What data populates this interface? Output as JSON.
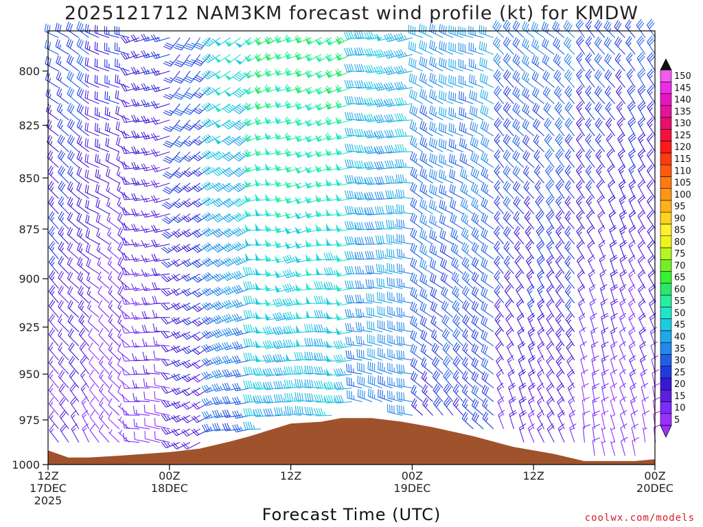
{
  "chart_data": {
    "type": "wind_profile",
    "title": "2025121712 NAM3KM forecast wind profile (kt) for KMDW",
    "xlabel": "Forecast Time (UTC)",
    "credit": "coolwx.com/models",
    "x_range_hours": [
      0,
      60
    ],
    "y_range_hpa": [
      1000,
      782
    ],
    "y_ticks": [
      {
        "label": "800",
        "value": 800
      },
      {
        "label": "825",
        "value": 825
      },
      {
        "label": "850",
        "value": 850
      },
      {
        "label": "875",
        "value": 875
      },
      {
        "label": "900",
        "value": 900
      },
      {
        "label": "925",
        "value": 925
      },
      {
        "label": "950",
        "value": 950
      },
      {
        "label": "975",
        "value": 975
      },
      {
        "label": "1000",
        "value": 1000
      }
    ],
    "x_ticks": [
      {
        "hour": 0,
        "line1": "12Z",
        "line2": "17DEC",
        "line3": "2025"
      },
      {
        "hour": 12,
        "line1": "00Z",
        "line2": "18DEC",
        "line3": ""
      },
      {
        "hour": 24,
        "line1": "12Z",
        "line2": "",
        "line3": ""
      },
      {
        "hour": 36,
        "line1": "00Z",
        "line2": "19DEC",
        "line3": ""
      },
      {
        "hour": 48,
        "line1": "12Z",
        "line2": "",
        "line3": ""
      },
      {
        "hour": 60,
        "line1": "00Z",
        "line2": "20DEC",
        "line3": ""
      }
    ],
    "colorbar": {
      "labels": [
        "5",
        "10",
        "15",
        "20",
        "25",
        "30",
        "35",
        "40",
        "45",
        "50",
        "55",
        "60",
        "65",
        "70",
        "75",
        "80",
        "85",
        "90",
        "95",
        "100",
        "105",
        "110",
        "115",
        "120",
        "125",
        "130",
        "135",
        "140",
        "145",
        "150"
      ],
      "colors": [
        "#9b30ff",
        "#7a2bff",
        "#5b1fe0",
        "#3a16d6",
        "#1f3be0",
        "#1f5fe8",
        "#2487ea",
        "#1fa8e8",
        "#1ccbe0",
        "#1fe6c8",
        "#25f0a0",
        "#2ae86a",
        "#39f034",
        "#74f025",
        "#b8f51e",
        "#eef51a",
        "#fff02a",
        "#ffd21a",
        "#ffb01a",
        "#ff9415",
        "#ff7a12",
        "#ff5a10",
        "#ff3a10",
        "#ff1a18",
        "#f21240",
        "#e8106a",
        "#e6129a",
        "#e616c4",
        "#ee2ae6",
        "#f25af0"
      ],
      "under_color": "#9b30ff",
      "over_color": "#111111"
    },
    "terrain_pressure_hpa": [
      {
        "hour": 0,
        "p": 992
      },
      {
        "hour": 2,
        "p": 996
      },
      {
        "hour": 4,
        "p": 996
      },
      {
        "hour": 7,
        "p": 995
      },
      {
        "hour": 12,
        "p": 993
      },
      {
        "hour": 15,
        "p": 991
      },
      {
        "hour": 18,
        "p": 987
      },
      {
        "hour": 20,
        "p": 984
      },
      {
        "hour": 24,
        "p": 977
      },
      {
        "hour": 27,
        "p": 976
      },
      {
        "hour": 29,
        "p": 974
      },
      {
        "hour": 32,
        "p": 974
      },
      {
        "hour": 35,
        "p": 976
      },
      {
        "hour": 38,
        "p": 979
      },
      {
        "hour": 42,
        "p": 984
      },
      {
        "hour": 46,
        "p": 990
      },
      {
        "hour": 50,
        "p": 994
      },
      {
        "hour": 53,
        "p": 998
      },
      {
        "hour": 58,
        "p": 998
      },
      {
        "hour": 60,
        "p": 997
      }
    ],
    "terrain_color": "#a0522d",
    "wind_regimes": [
      {
        "hour_start": 0,
        "hour_end": 4,
        "direction_deg": 300,
        "speed_kt_upper": 30,
        "speed_kt_lower": 15
      },
      {
        "hour_start": 4,
        "hour_end": 8,
        "direction_deg": 290,
        "speed_kt_upper": 25,
        "speed_kt_lower": 8
      },
      {
        "hour_start": 8,
        "hour_end": 12,
        "direction_deg": 250,
        "speed_kt_upper": 25,
        "speed_kt_lower": 10
      },
      {
        "hour_start": 12,
        "hour_end": 16,
        "direction_deg": 220,
        "speed_kt_upper": 30,
        "speed_kt_lower": 20
      },
      {
        "hour_start": 16,
        "hour_end": 20,
        "direction_deg": 230,
        "speed_kt_upper": 50,
        "speed_kt_lower": 30
      },
      {
        "hour_start": 20,
        "hour_end": 30,
        "direction_deg": 245,
        "speed_kt_upper": 60,
        "speed_kt_lower": 40
      },
      {
        "hour_start": 30,
        "hour_end": 36,
        "direction_deg": 260,
        "speed_kt_upper": 45,
        "speed_kt_lower": 35
      },
      {
        "hour_start": 36,
        "hour_end": 44,
        "direction_deg": 290,
        "speed_kt_upper": 40,
        "speed_kt_lower": 25
      },
      {
        "hour_start": 44,
        "hour_end": 52,
        "direction_deg": 310,
        "speed_kt_upper": 35,
        "speed_kt_lower": 15
      },
      {
        "hour_start": 52,
        "hour_end": 60,
        "direction_deg": 320,
        "speed_kt_upper": 30,
        "speed_kt_lower": 8
      }
    ]
  }
}
